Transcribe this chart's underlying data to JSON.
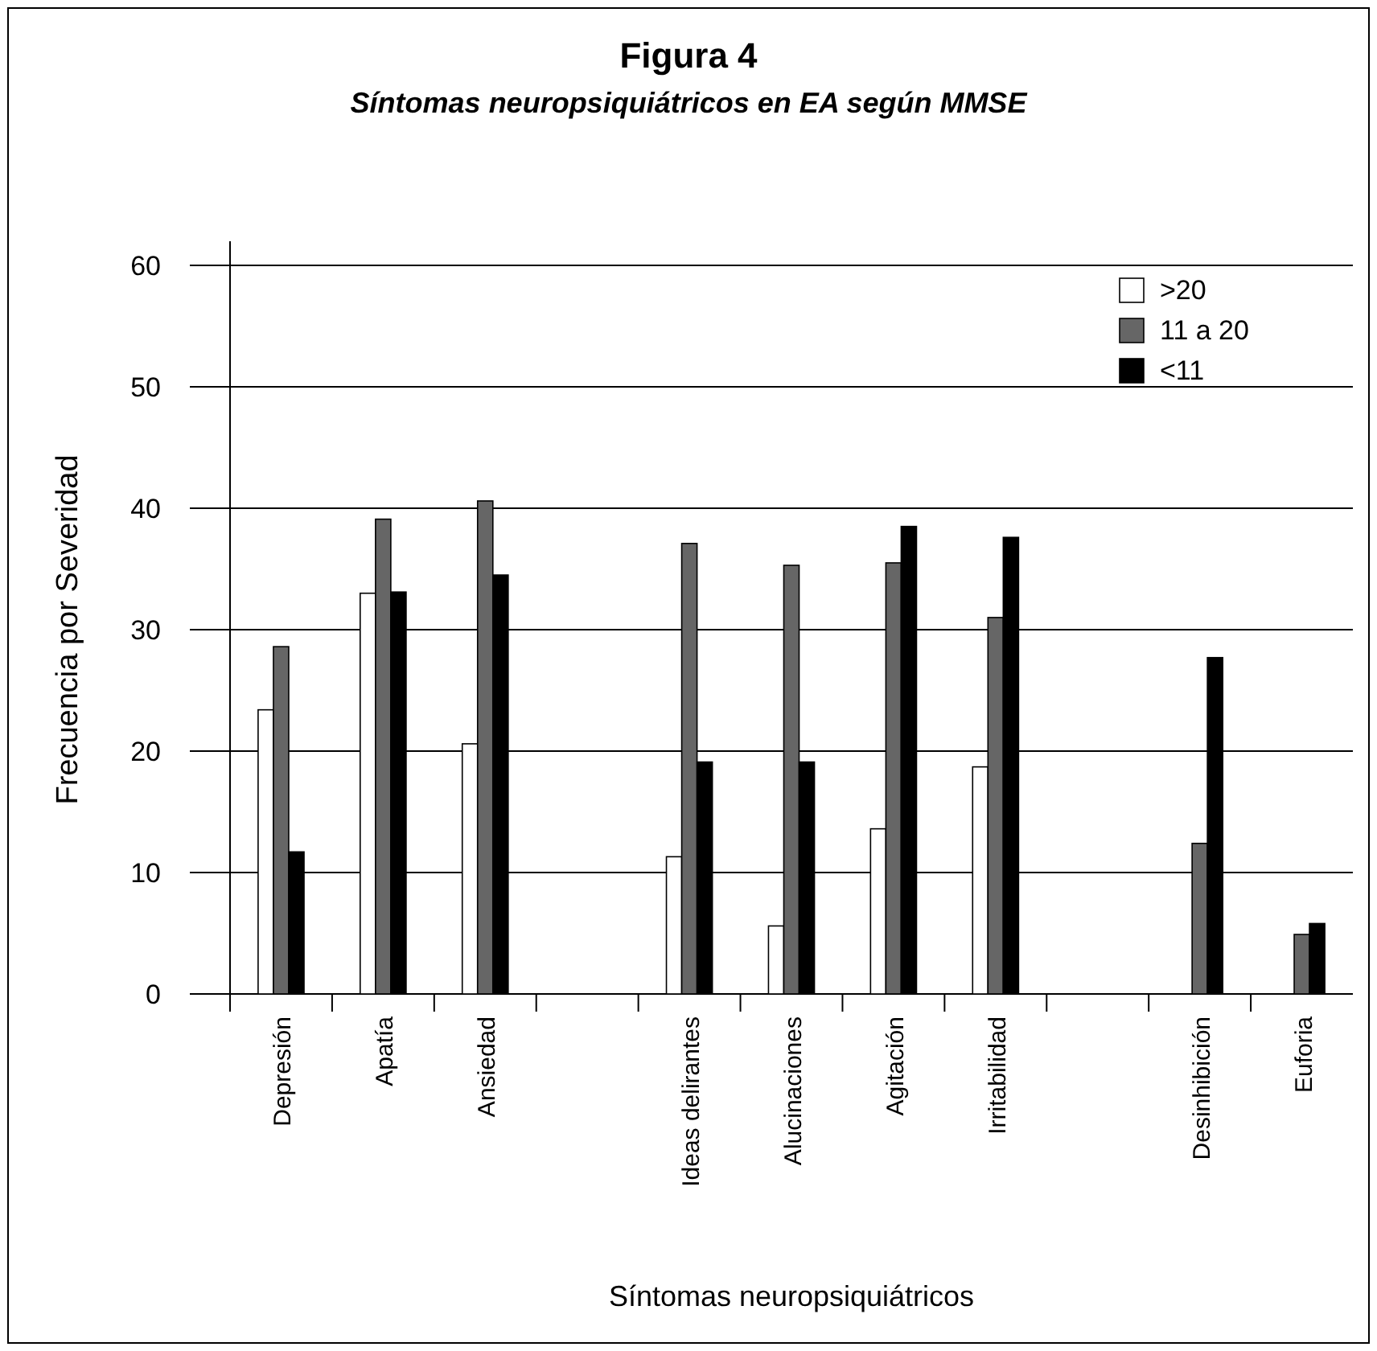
{
  "chart_data": {
    "type": "bar",
    "title": "Figura 4",
    "subtitle": "Síntomas neuropsiquiátricos en EA según MMSE",
    "xlabel": "Síntomas neuropsiquiátricos",
    "ylabel": "Frecuencia por Severidad",
    "categories": [
      "Depresión",
      "Apatía",
      "Ansiedad",
      null,
      "Ideas delirantes",
      "Alucinaciones",
      "Agitación",
      "Irritabilidad",
      null,
      "Desinhibición",
      "Euforia"
    ],
    "series": [
      {
        "name": ">20",
        "color": "#ffffff",
        "values": [
          23.4,
          33.0,
          20.6,
          null,
          11.3,
          5.6,
          13.6,
          18.7,
          null,
          null,
          null
        ]
      },
      {
        "name": "11 a 20",
        "color": "#666666",
        "values": [
          28.6,
          39.1,
          40.6,
          null,
          37.1,
          35.3,
          35.5,
          31.0,
          null,
          12.4,
          4.9
        ]
      },
      {
        "name": "<11",
        "color": "#000000",
        "values": [
          11.7,
          33.1,
          34.5,
          null,
          19.1,
          19.1,
          38.5,
          37.6,
          null,
          27.7,
          5.8
        ]
      }
    ],
    "ylim": [
      0,
      60
    ],
    "yticks": [
      0,
      10,
      20,
      30,
      40,
      50,
      60
    ],
    "grid": "y",
    "legend": "top right"
  }
}
